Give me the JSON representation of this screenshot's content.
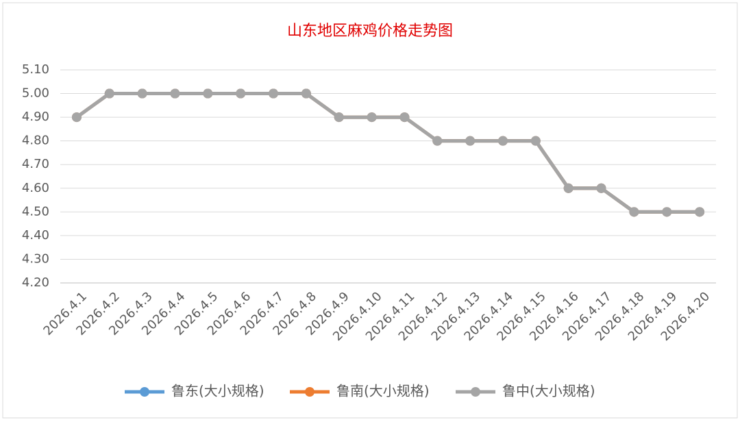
{
  "chart_data": {
    "type": "line",
    "title": "山东地区麻鸡价格走势图",
    "categories": [
      "2026.4.1",
      "2026.4.2",
      "2026.4.3",
      "2026.4.4",
      "2026.4.5",
      "2026.4.6",
      "2026.4.7",
      "2026.4.8",
      "2026.4.9",
      "2026.4.10",
      "2026.4.11",
      "2026.4.12",
      "2026.4.13",
      "2026.4.14",
      "2026.4.15",
      "2026.4.16",
      "2026.4.17",
      "2026.4.18",
      "2026.4.19",
      "2026.4.20"
    ],
    "series": [
      {
        "name": "鲁东(大小规格)",
        "color": "#5b9bd5",
        "values": [
          4.9,
          5,
          5,
          5,
          5,
          5,
          5,
          5,
          4.9,
          4.9,
          4.9,
          4.8,
          4.8,
          4.8,
          4.8,
          4.6,
          4.6,
          4.5,
          4.5,
          4.5
        ]
      },
      {
        "name": "鲁南(大小规格)",
        "color": "#ed7d31",
        "values": [
          4.9,
          5,
          5,
          5,
          5,
          5,
          5,
          5,
          4.9,
          4.9,
          4.9,
          4.8,
          4.8,
          4.8,
          4.8,
          4.6,
          4.6,
          4.5,
          4.5,
          4.5
        ]
      },
      {
        "name": "鲁中(大小规格)",
        "color": "#a5a5a5",
        "values": [
          4.9,
          5,
          5,
          5,
          5,
          5,
          5,
          5,
          4.9,
          4.9,
          4.9,
          4.8,
          4.8,
          4.8,
          4.8,
          4.6,
          4.6,
          4.5,
          4.5,
          4.5
        ]
      }
    ],
    "ylim": [
      4.2,
      5.1
    ],
    "yticks": [
      {
        "value": 4.2,
        "label": "4.20"
      },
      {
        "value": 4.3,
        "label": "4.30"
      },
      {
        "value": 4.4,
        "label": "4.40"
      },
      {
        "value": 4.5,
        "label": "4.50"
      },
      {
        "value": 4.6,
        "label": "4.60"
      },
      {
        "value": 4.7,
        "label": "4.70"
      },
      {
        "value": 4.8,
        "label": "4.80"
      },
      {
        "value": 4.9,
        "label": "4.90"
      },
      {
        "value": 5,
        "label": "5.00"
      },
      {
        "value": 5.1,
        "label": "5.10"
      }
    ],
    "grid": true,
    "legend": "bottom"
  }
}
